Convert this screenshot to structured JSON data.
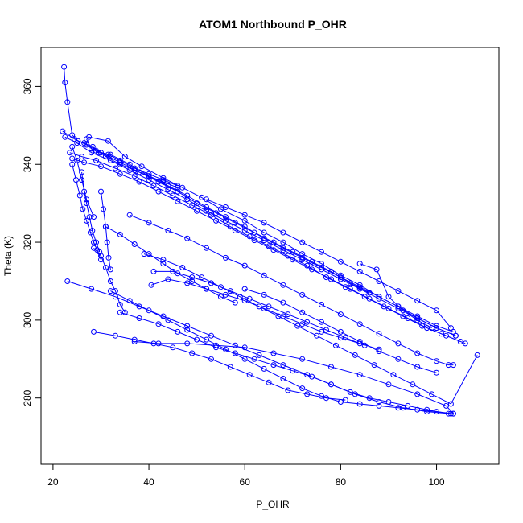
{
  "chart_data": {
    "type": "line",
    "title": "ATOM1 Northbound P_OHR",
    "xlabel": "P_OHR",
    "ylabel": "Theta (K)",
    "xlim": [
      17.5,
      113.0
    ],
    "ylim": [
      263.0,
      370.0
    ],
    "x_ticks": [
      20,
      40,
      60,
      80,
      100
    ],
    "y_ticks": [
      280,
      300,
      320,
      340,
      360
    ],
    "grid": false,
    "legend": "none",
    "series_color": "#0000ff",
    "marker": "open-circle",
    "series": [
      {
        "x": [
          22.3,
          22.5,
          23.0,
          24.0,
          25.2,
          26.5,
          28.3,
          31.0,
          34.0,
          37.0,
          40.0,
          43.0,
          46.0
        ],
        "y": [
          365.0,
          361.0,
          356.0,
          347.5,
          346.0,
          345.5,
          344.5,
          342.0,
          340.0,
          338.5,
          337.0,
          335.5,
          334.0
        ]
      },
      {
        "x": [
          22.0,
          24.5,
          27.0,
          30.0,
          34.0,
          38.0,
          42.0,
          46.0,
          50.0,
          54.0,
          58.0,
          62.0,
          66.0,
          70.0,
          74.0,
          78.0,
          82.0,
          86.0
        ],
        "y": [
          348.5,
          346.5,
          345.0,
          343.0,
          340.5,
          338.0,
          335.5,
          333.0,
          330.0,
          327.5,
          325.0,
          322.5,
          320.0,
          317.5,
          315.0,
          312.5,
          309.5,
          307.0
        ]
      },
      {
        "x": [
          22.5,
          25.0,
          28.0,
          32.0,
          36.0,
          40.0,
          44.0,
          48.0,
          52.0,
          56.0,
          60.0,
          64.0,
          68.0,
          72.0,
          76.0,
          80.0,
          84.0,
          88.0,
          92.0,
          96.0,
          100.0,
          104.0
        ],
        "y": [
          347.0,
          345.5,
          343.0,
          341.0,
          338.5,
          336.0,
          333.5,
          331.0,
          328.0,
          325.5,
          323.0,
          320.5,
          318.0,
          315.5,
          313.0,
          310.5,
          308.0,
          305.5,
          303.0,
          300.5,
          298.0,
          296.0
        ]
      },
      {
        "x": [
          23.5,
          26.0,
          29.0,
          33.0,
          37.0,
          41.0,
          45.0,
          49.0,
          53.0,
          57.0,
          61.0,
          65.0,
          69.0,
          73.0,
          77.0,
          81.0,
          85.0,
          89.0,
          93.0,
          97.0,
          101.0,
          105.0
        ],
        "y": [
          343.0,
          342.0,
          341.0,
          339.0,
          337.0,
          334.5,
          332.0,
          329.5,
          327.0,
          324.0,
          321.5,
          319.0,
          316.5,
          314.0,
          311.0,
          308.5,
          306.0,
          303.5,
          301.0,
          298.5,
          296.5,
          294.5
        ]
      },
      {
        "x": [
          24.0,
          26.5,
          30.0,
          34.0,
          38.0,
          42.0,
          46.0,
          50.0,
          54.0,
          58.0,
          62.0,
          66.0,
          70.0,
          74.0,
          78.0,
          82.0,
          86.0,
          90.0,
          94.0,
          98.0,
          102.0,
          106.0
        ],
        "y": [
          341.5,
          340.5,
          339.5,
          337.5,
          335.5,
          333.0,
          330.5,
          328.0,
          325.5,
          323.0,
          320.5,
          318.0,
          315.5,
          313.0,
          310.5,
          308.0,
          305.5,
          303.0,
          300.5,
          298.0,
          296.0,
          294.0
        ]
      },
      {
        "x": [
          27.5,
          31.5,
          35.0,
          38.5,
          43.0,
          47.0,
          51.0,
          55.0,
          60.0,
          64.0,
          68.0,
          72.0,
          76.0,
          80.0,
          84.0,
          88.0,
          92.0,
          96.0,
          100.0,
          104.0
        ],
        "y": [
          347.0,
          346.0,
          342.0,
          339.5,
          336.5,
          334.0,
          331.5,
          328.5,
          325.5,
          322.5,
          320.0,
          317.0,
          314.5,
          311.5,
          309.0,
          306.0,
          303.5,
          300.5,
          298.0,
          296.0
        ]
      },
      {
        "x": [
          27.0,
          28.0,
          29.5,
          32.0,
          36.0,
          40.0,
          44.0,
          48.0,
          52.0,
          56.0,
          60.0,
          64.0,
          68.0,
          72.0,
          76.0,
          80.0,
          84.0,
          88.0,
          92.0,
          96.0,
          100.0,
          103.5
        ],
        "y": [
          346.5,
          344.0,
          343.0,
          342.5,
          340.0,
          337.0,
          334.5,
          332.0,
          329.0,
          326.5,
          324.0,
          321.0,
          318.5,
          316.0,
          313.5,
          311.0,
          308.5,
          306.0,
          303.5,
          301.0,
          298.5,
          297.0
        ]
      },
      {
        "x": [
          24.0,
          24.8,
          25.6,
          26.2,
          27.0,
          27.8,
          28.5,
          29.2,
          30.0
        ],
        "y": [
          340.0,
          336.0,
          332.0,
          328.5,
          325.5,
          322.5,
          320.0,
          318.0,
          315.5
        ]
      },
      {
        "x": [
          26.0,
          26.5,
          27.0,
          27.6,
          28.2,
          29.0,
          29.7
        ],
        "y": [
          338.0,
          333.0,
          330.0,
          326.5,
          323.0,
          320.0,
          317.5
        ]
      },
      {
        "x": [
          30.0,
          30.5,
          31.0,
          31.3,
          31.6,
          32.0
        ],
        "y": [
          333.0,
          328.5,
          324.0,
          320.0,
          316.0,
          313.0
        ]
      },
      {
        "x": [
          28.5,
          30.0,
          31.0,
          32.0,
          33.0,
          34.0,
          35.0
        ],
        "y": [
          318.5,
          316.5,
          313.5,
          310.0,
          307.5,
          304.0,
          302.0
        ]
      },
      {
        "x": [
          24.0,
          25.0,
          26.0,
          27.0,
          28.5
        ],
        "y": [
          344.5,
          341.0,
          336.0,
          331.0,
          326.5
        ]
      },
      {
        "x": [
          36.0,
          40.0,
          44.0,
          48.0,
          52.0,
          56.0,
          60.0,
          64.0,
          68.0,
          72.0,
          76.0,
          80.0,
          84.0,
          88.0,
          92.0,
          96.0,
          100.0,
          102.5,
          103.5
        ],
        "y": [
          327.0,
          325.0,
          323.0,
          321.0,
          318.5,
          316.0,
          314.0,
          311.5,
          309.0,
          306.5,
          304.0,
          301.5,
          299.0,
          296.5,
          294.0,
          291.5,
          289.5,
          288.5,
          288.5
        ]
      },
      {
        "x": [
          39.0,
          43.0,
          47.0,
          51.0,
          55.0,
          59.0,
          63.0,
          67.0,
          71.0,
          75.0,
          79.0,
          83.0,
          87.0,
          91.0,
          95.0,
          99.0,
          103.0,
          108.5
        ],
        "y": [
          317.0,
          315.5,
          313.5,
          311.0,
          308.5,
          306.0,
          303.5,
          301.0,
          298.5,
          296.0,
          293.5,
          291.0,
          288.5,
          286.0,
          283.5,
          281.0,
          278.5,
          291.0
        ]
      },
      {
        "x": [
          23.0,
          28.0,
          33.0,
          38.0,
          43.0,
          48.0,
          53.0,
          58.0,
          63.0,
          68.0,
          73.0,
          78.0,
          83.0,
          88.0,
          93.0,
          98.0,
          103.0
        ],
        "y": [
          310.0,
          308.0,
          306.0,
          303.5,
          301.0,
          298.5,
          296.0,
          293.5,
          291.0,
          288.5,
          286.0,
          283.5,
          281.0,
          279.0,
          277.5,
          276.5,
          276.0
        ]
      },
      {
        "x": [
          32.0,
          36.0,
          40.0,
          44.0,
          48.0,
          52.0,
          56.0,
          60.0,
          64.0,
          68.0,
          72.0,
          76.0,
          80.0,
          84.0,
          88.0,
          92.0,
          96.0,
          100.0,
          103.5
        ],
        "y": [
          307.5,
          305.0,
          302.5,
          300.0,
          297.5,
          295.0,
          292.5,
          290.0,
          287.5,
          285.0,
          282.5,
          280.5,
          279.0,
          278.5,
          278.0,
          277.5,
          277.0,
          276.5,
          276.0
        ]
      },
      {
        "x": [
          34.0,
          38.0,
          42.0,
          46.0,
          50.0,
          54.0,
          58.0,
          62.0,
          66.0,
          70.0,
          74.0,
          78.0,
          82.0,
          86.0,
          90.0,
          94.0,
          98.0,
          102.5
        ],
        "y": [
          302.0,
          300.5,
          299.0,
          297.0,
          295.0,
          293.0,
          291.5,
          290.0,
          288.5,
          287.0,
          285.5,
          283.5,
          281.5,
          280.0,
          279.0,
          278.0,
          277.0,
          276.0
        ]
      },
      {
        "x": [
          28.5,
          33.0,
          37.0,
          41.0,
          45.0,
          49.0,
          53.0,
          57.0,
          61.0,
          65.0,
          69.0,
          73.0,
          77.0,
          81.0
        ],
        "y": [
          297.0,
          296.0,
          295.0,
          294.0,
          293.0,
          291.5,
          290.0,
          288.0,
          286.0,
          284.0,
          282.0,
          281.0,
          280.0,
          279.5
        ]
      },
      {
        "x": [
          37.0,
          42.0,
          48.0,
          54.0,
          60.0,
          66.0,
          72.0,
          78.0,
          84.0,
          90.0,
          96.0,
          102.0,
          103.5
        ],
        "y": [
          294.5,
          294.0,
          294.0,
          293.5,
          293.0,
          291.5,
          290.0,
          288.0,
          286.0,
          283.5,
          281.0,
          278.0,
          276.0
        ]
      },
      {
        "x": [
          31.0,
          34.0,
          37.0,
          40.0,
          43.0,
          46.0,
          49.0,
          52.0,
          55.0,
          58.0
        ],
        "y": [
          324.0,
          322.0,
          319.5,
          317.0,
          314.5,
          312.0,
          310.0,
          308.0,
          306.0,
          304.5
        ]
      },
      {
        "x": [
          40.5,
          44.0,
          48.0,
          52.0,
          56.0,
          60.0,
          64.0,
          68.0,
          72.0,
          76.0,
          80.0,
          84.0,
          88.0
        ],
        "y": [
          309.0,
          310.5,
          309.5,
          308.0,
          306.5,
          305.0,
          303.0,
          301.0,
          299.0,
          297.0,
          295.5,
          294.0,
          292.5
        ]
      },
      {
        "x": [
          52.0,
          56.0,
          60.0,
          64.0,
          68.0,
          72.0,
          76.0,
          80.0,
          84.0,
          88.0,
          92.0,
          96.0,
          100.0,
          103.0
        ],
        "y": [
          331.0,
          329.0,
          327.0,
          325.0,
          322.5,
          320.0,
          317.5,
          315.0,
          312.5,
          310.0,
          307.5,
          305.0,
          302.5,
          298.0
        ]
      },
      {
        "x": [
          29.0,
          31.5,
          34.0,
          37.0,
          40.0,
          43.0,
          46.0
        ],
        "y": [
          343.5,
          342.5,
          341.0,
          339.0,
          337.5,
          336.0,
          334.5
        ]
      },
      {
        "x": [
          41.0,
          45.0,
          49.0,
          53.0,
          57.0,
          61.0,
          65.0,
          69.0,
          73.0,
          77.0,
          81.0,
          85.0
        ],
        "y": [
          312.5,
          312.5,
          311.0,
          309.5,
          307.5,
          305.5,
          303.5,
          301.5,
          299.5,
          297.5,
          295.5,
          293.5
        ]
      },
      {
        "x": [
          60.0,
          64.0,
          68.0,
          72.0,
          76.0,
          80.0,
          84.0,
          88.0,
          92.0,
          96.0,
          100.0
        ],
        "y": [
          308.0,
          306.5,
          304.5,
          302.0,
          299.5,
          297.0,
          294.5,
          292.0,
          290.0,
          288.0,
          286.5
        ]
      },
      {
        "x": [
          84.0,
          87.5,
          90.0,
          93.0,
          96.0,
          99.0
        ],
        "y": [
          314.5,
          313.0,
          306.0,
          302.5,
          300.0,
          298.0
        ]
      }
    ]
  }
}
